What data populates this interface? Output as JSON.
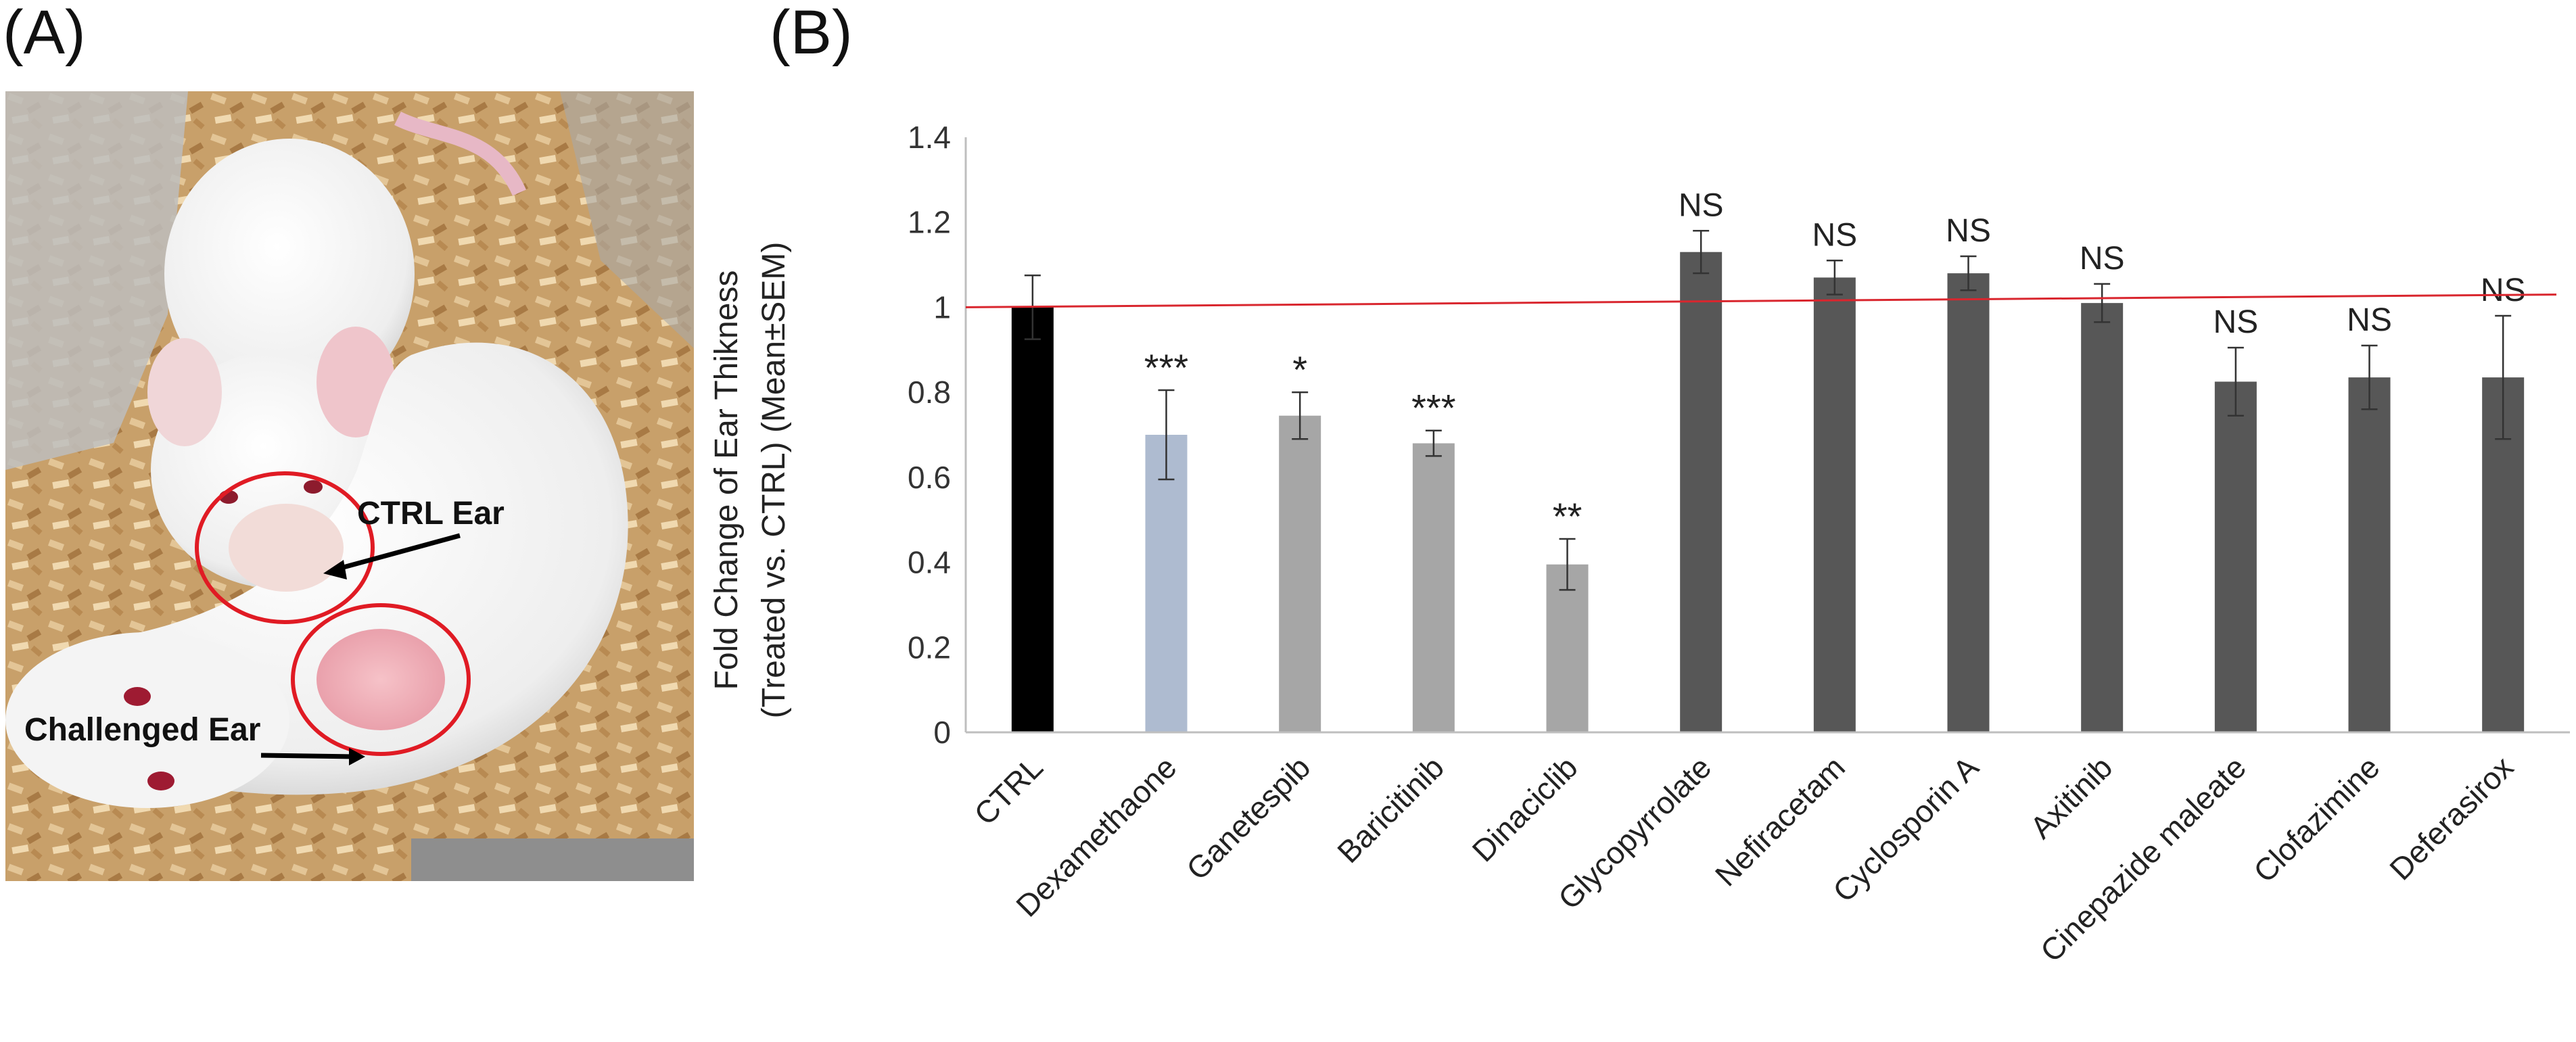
{
  "panels": {
    "a_label": "(A)",
    "b_label": "(B)"
  },
  "photo": {
    "ctrl_label": "CTRL Ear",
    "challenged_label": "Challenged Ear",
    "circle_color": "#e01b24"
  },
  "chart_data": {
    "type": "bar",
    "title": "",
    "xlabel": "",
    "ylabel": [
      "Fold Change of Ear Thikness",
      "(Treated vs. CTRL) (Mean±SEM)"
    ],
    "ylim": [
      0,
      1.4
    ],
    "yticks": [
      0,
      0.2,
      0.4,
      0.6,
      0.8,
      1,
      1.2,
      1.4
    ],
    "ytick_labels": [
      "0",
      "0.2",
      "0.4",
      "0.6",
      "0.8",
      "1",
      "1.2",
      "1.4"
    ],
    "categories": [
      "CTRL",
      "Dexamethaone",
      "Ganetespib",
      "Baricitinib",
      "Dinaciclib",
      "Glycopyrrolate",
      "Nefiracetam",
      "Cyclosporin A",
      "Axitinib",
      "Cinepazide maleate",
      "Clofazimine",
      "Deferasirox"
    ],
    "values": [
      1.0,
      0.7,
      0.745,
      0.68,
      0.395,
      1.13,
      1.07,
      1.08,
      1.01,
      0.825,
      0.835,
      0.835
    ],
    "errors": [
      0.075,
      0.105,
      0.055,
      0.03,
      0.06,
      0.05,
      0.04,
      0.04,
      0.045,
      0.08,
      0.075,
      0.145
    ],
    "colors": [
      "#000000",
      "#aebbd0",
      "#a6a6a6",
      "#a6a6a6",
      "#a6a6a6",
      "#575757",
      "#575757",
      "#575757",
      "#575757",
      "#575757",
      "#575757",
      "#575757"
    ],
    "significance": [
      "",
      "***",
      "*",
      "***",
      "**",
      "NS",
      "NS",
      "NS",
      "NS",
      "NS",
      "NS",
      "NS"
    ],
    "reference_line": {
      "y_start": 1.0,
      "y_end": 1.03,
      "color": "#d9262e"
    }
  }
}
